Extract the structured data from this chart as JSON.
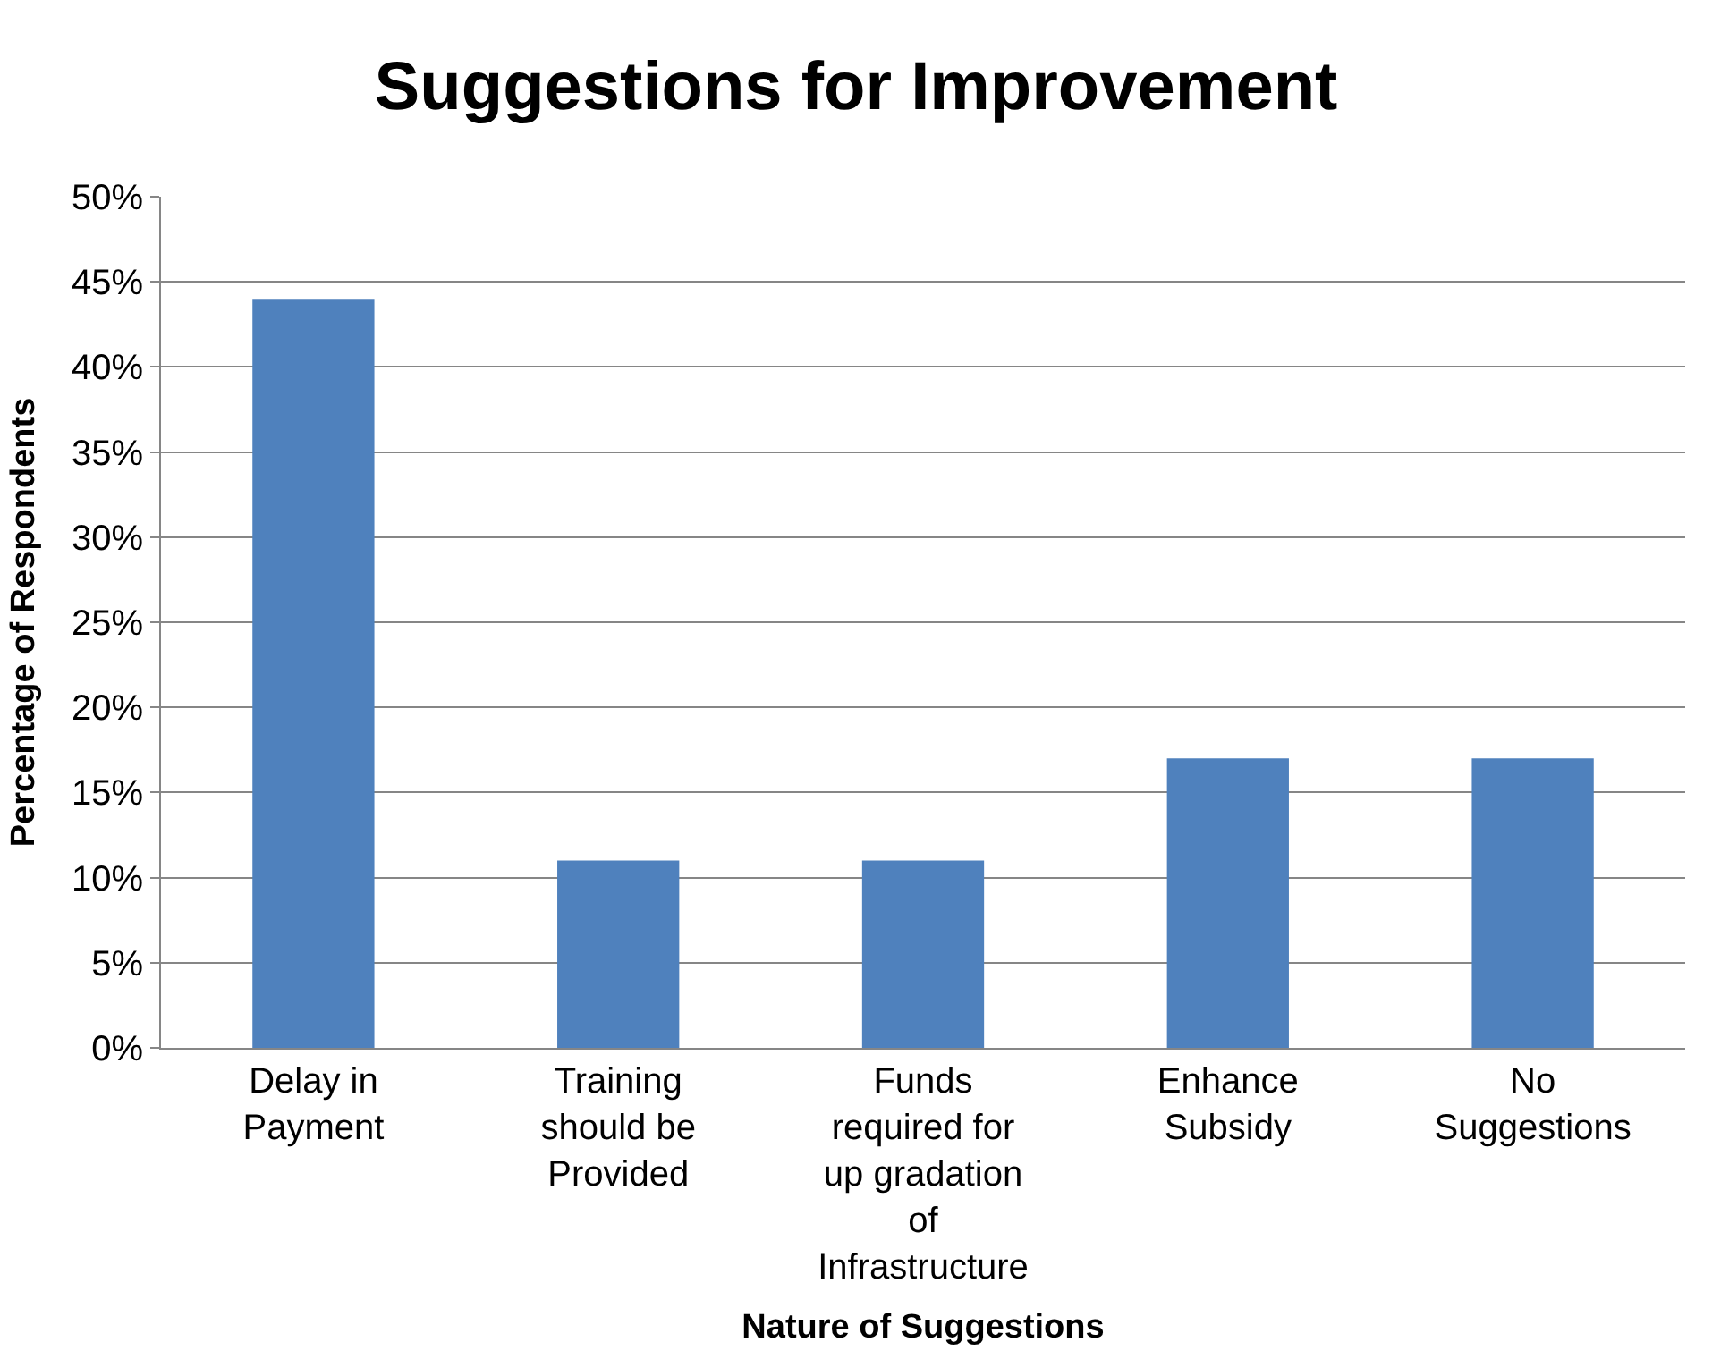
{
  "chart_data": {
    "type": "bar",
    "title": "Suggestions for Improvement",
    "xlabel": "Nature of Suggestions",
    "ylabel": "Percentage of Respondents",
    "categories": [
      "Delay in Payment",
      "Training should be Provided",
      "Funds required for up gradation of Infrastructure",
      "Enhance Subsidy",
      "No Suggestions"
    ],
    "values": [
      44,
      11,
      11,
      17,
      17
    ],
    "color": "#4f81bd",
    "ylim": [
      0,
      50
    ],
    "yticks": [
      {
        "value": 0,
        "label": "0%"
      },
      {
        "value": 5,
        "label": "5%"
      },
      {
        "value": 10,
        "label": "10%"
      },
      {
        "value": 15,
        "label": "15%"
      },
      {
        "value": 20,
        "label": "20%"
      },
      {
        "value": 25,
        "label": "25%"
      },
      {
        "value": 30,
        "label": "30%"
      },
      {
        "value": 35,
        "label": "35%"
      },
      {
        "value": 40,
        "label": "40%"
      },
      {
        "value": 45,
        "label": "45%"
      },
      {
        "value": 50,
        "label": "50%"
      }
    ],
    "grid": "y"
  }
}
